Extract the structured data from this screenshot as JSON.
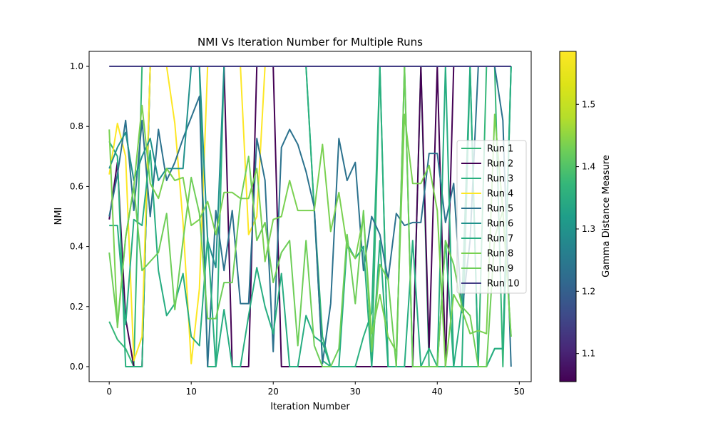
{
  "chart_data": {
    "type": "line",
    "title": "NMI Vs Iteration Number for Multiple Runs",
    "xlabel": "Iteration Number",
    "ylabel": "NMI",
    "xlim": [
      -2.45,
      51.45
    ],
    "ylim": [
      -0.05,
      1.05
    ],
    "x_ticks": [
      0,
      10,
      20,
      30,
      40,
      50
    ],
    "y_ticks": [
      0.0,
      0.2,
      0.4,
      0.6,
      0.8,
      1.0
    ],
    "y_tick_labels": [
      "0.0",
      "0.2",
      "0.4",
      "0.6",
      "0.8",
      "1.0"
    ],
    "x": [
      0,
      1,
      2,
      3,
      4,
      5,
      6,
      7,
      8,
      9,
      10,
      11,
      12,
      13,
      14,
      15,
      16,
      17,
      18,
      19,
      20,
      21,
      22,
      23,
      24,
      25,
      26,
      27,
      28,
      29,
      30,
      31,
      32,
      33,
      34,
      35,
      36,
      37,
      38,
      39,
      40,
      41,
      42,
      43,
      44,
      45,
      46,
      47,
      48,
      49
    ],
    "grid": false,
    "legend": {
      "placement": "center-right"
    },
    "colorbar": {
      "label": "Gamma Distance Measure",
      "range": [
        1.055,
        1.585
      ],
      "ticks": [
        1.1,
        1.2,
        1.3,
        1.4,
        1.5
      ],
      "tick_labels": [
        "1.1",
        "1.2",
        "1.3",
        "1.4",
        "1.5"
      ],
      "colormap": "viridis"
    },
    "series": [
      {
        "name": "Run 1",
        "color": "#35b779",
        "values": [
          0.15,
          0.09,
          0.06,
          0.0,
          1.0,
          1.0,
          1.0,
          1.0,
          1.0,
          1.0,
          1.0,
          1.0,
          1.0,
          1.0,
          1.0,
          1.0,
          1.0,
          1.0,
          1.0,
          1.0,
          1.0,
          1.0,
          1.0,
          1.0,
          1.0,
          0.52,
          0.1,
          0.0,
          0.0,
          0.0,
          0.0,
          0.0,
          0.0,
          1.0,
          0.0,
          0.0,
          0.0,
          0.0,
          1.0,
          0.0,
          0.0,
          0.0,
          0.0,
          0.0,
          0.0,
          0.0,
          1.0,
          1.0,
          0.0,
          1.0
        ]
      },
      {
        "name": "Run 2",
        "color": "#440154",
        "values": [
          0.49,
          0.68,
          0.16,
          0.0,
          0.0,
          1.0,
          1.0,
          1.0,
          1.0,
          1.0,
          1.0,
          1.0,
          1.0,
          1.0,
          1.0,
          0.0,
          0.0,
          0.0,
          1.0,
          1.0,
          1.0,
          0.0,
          0.0,
          0.0,
          0.0,
          0.0,
          0.0,
          0.0,
          0.0,
          0.0,
          0.0,
          0.0,
          0.0,
          0.0,
          0.0,
          0.0,
          0.0,
          0.0,
          1.0,
          0.06,
          1.0,
          0.0,
          1.0,
          1.0,
          1.0,
          1.0,
          1.0,
          1.0,
          1.0,
          1.0
        ]
      },
      {
        "name": "Run 3",
        "color": "#2ab07f",
        "values": [
          0.75,
          0.7,
          0.0,
          0.0,
          0.0,
          1.0,
          1.0,
          1.0,
          1.0,
          1.0,
          1.0,
          1.0,
          0.0,
          0.0,
          1.0,
          1.0,
          1.0,
          1.0,
          1.0,
          1.0,
          1.0,
          1.0,
          1.0,
          1.0,
          1.0,
          0.52,
          0.02,
          0.0,
          0.0,
          0.0,
          0.0,
          0.1,
          0.18,
          1.0,
          0.0,
          0.0,
          1.0,
          0.0,
          0.0,
          0.06,
          0.0,
          0.42,
          0.0,
          0.0,
          1.0,
          0.0,
          0.0,
          0.06,
          0.06,
          1.0
        ]
      },
      {
        "name": "Run 4",
        "color": "#fde725",
        "values": [
          0.64,
          0.81,
          0.7,
          0.02,
          0.1,
          1.0,
          1.0,
          1.0,
          0.81,
          0.48,
          0.01,
          0.26,
          1.0,
          1.0,
          1.0,
          1.0,
          1.0,
          0.44,
          0.5,
          1.0,
          1.0,
          1.0,
          1.0,
          1.0,
          1.0,
          1.0,
          1.0,
          1.0,
          1.0,
          1.0,
          1.0,
          1.0,
          1.0,
          1.0,
          1.0,
          1.0,
          1.0,
          1.0,
          1.0,
          1.0,
          1.0,
          1.0,
          1.0,
          1.0,
          1.0,
          1.0,
          1.0,
          1.0,
          1.0,
          1.0
        ]
      },
      {
        "name": "Run 5",
        "color": "#2c728e",
        "values": [
          0.5,
          0.64,
          0.82,
          0.52,
          0.82,
          0.5,
          0.79,
          0.62,
          0.68,
          0.76,
          0.83,
          0.9,
          0.0,
          0.52,
          0.32,
          0.52,
          0.21,
          0.21,
          0.76,
          0.62,
          0.05,
          0.73,
          0.79,
          0.74,
          0.65,
          0.53,
          0.01,
          0.21,
          0.76,
          0.62,
          0.68,
          0.32,
          0.5,
          0.44,
          0.29,
          0.51,
          0.47,
          0.48,
          0.48,
          0.71,
          0.71,
          0.48,
          0.61,
          0.18,
          0.42,
          1.0,
          1.0,
          1.0,
          0.82,
          0.0
        ]
      },
      {
        "name": "Run 6",
        "color": "#21918c",
        "values": [
          0.66,
          0.73,
          0.78,
          0.62,
          0.7,
          0.76,
          0.62,
          0.66,
          0.66,
          0.66,
          1.0,
          1.0,
          0.42,
          0.33,
          1.0,
          1.0,
          1.0,
          1.0,
          1.0,
          1.0,
          1.0,
          1.0,
          1.0,
          1.0,
          1.0,
          1.0,
          1.0,
          1.0,
          1.0,
          1.0,
          1.0,
          1.0,
          1.0,
          1.0,
          1.0,
          1.0,
          1.0,
          1.0,
          1.0,
          1.0,
          1.0,
          1.0,
          1.0,
          1.0,
          1.0,
          1.0,
          1.0,
          1.0,
          1.0,
          1.0
        ]
      },
      {
        "name": "Run 7",
        "color": "#27ad81",
        "values": [
          0.47,
          0.47,
          0.14,
          0.49,
          0.47,
          0.72,
          0.32,
          0.17,
          0.21,
          0.31,
          0.1,
          0.07,
          0.43,
          0.0,
          0.19,
          0.0,
          0.0,
          0.17,
          0.33,
          0.2,
          0.11,
          0.31,
          0.0,
          0.0,
          0.17,
          0.1,
          0.08,
          0.0,
          0.0,
          0.41,
          0.36,
          0.4,
          0.0,
          0.42,
          0.0,
          0.0,
          0.0,
          0.42,
          0.0,
          0.0,
          0.0,
          1.0,
          0.0,
          0.2,
          1.0,
          0.0,
          0.0,
          0.06,
          0.06,
          1.0
        ]
      },
      {
        "name": "Run 8",
        "color": "#7ad151",
        "values": [
          0.79,
          0.13,
          0.43,
          0.6,
          0.87,
          0.61,
          0.56,
          0.66,
          0.62,
          0.63,
          0.47,
          0.49,
          0.55,
          0.44,
          0.58,
          0.58,
          0.56,
          0.56,
          0.66,
          0.35,
          0.49,
          0.5,
          0.62,
          0.52,
          0.52,
          0.52,
          0.74,
          0.45,
          0.58,
          0.4,
          0.36,
          0.5,
          0.11,
          0.24,
          0.1,
          0.05,
          0.84,
          0.61,
          0.61,
          0.67,
          0.52,
          0.0,
          0.24,
          0.19,
          0.11,
          0.12,
          0.11,
          0.84,
          0.52,
          0.1
        ]
      },
      {
        "name": "Run 9",
        "color": "#6ece58",
        "values": [
          0.38,
          0.14,
          0.43,
          0.6,
          0.32,
          0.35,
          0.38,
          0.51,
          0.19,
          0.42,
          0.63,
          0.51,
          0.16,
          0.16,
          0.28,
          0.28,
          0.55,
          0.7,
          0.42,
          0.48,
          0.28,
          0.38,
          0.42,
          0.07,
          0.42,
          0.07,
          0.0,
          0.0,
          0.06,
          0.44,
          0.21,
          0.52,
          0.05,
          0.34,
          0.29,
          0.0,
          1.0,
          0.0,
          0.0,
          0.0,
          0.0,
          0.42,
          0.34,
          0.2,
          0.17,
          0.0,
          0.0,
          0.43,
          0.52,
          0.1
        ]
      },
      {
        "name": "Run 10",
        "color": "#433e85",
        "values": [
          1.0,
          1.0,
          1.0,
          1.0,
          1.0,
          1.0,
          1.0,
          1.0,
          1.0,
          1.0,
          1.0,
          1.0,
          1.0,
          1.0,
          1.0,
          1.0,
          1.0,
          1.0,
          1.0,
          1.0,
          1.0,
          1.0,
          1.0,
          1.0,
          1.0,
          1.0,
          1.0,
          1.0,
          1.0,
          1.0,
          1.0,
          1.0,
          1.0,
          1.0,
          1.0,
          1.0,
          1.0,
          1.0,
          1.0,
          1.0,
          1.0,
          1.0,
          1.0,
          1.0,
          1.0,
          1.0,
          1.0,
          1.0,
          1.0,
          1.0
        ]
      }
    ]
  }
}
